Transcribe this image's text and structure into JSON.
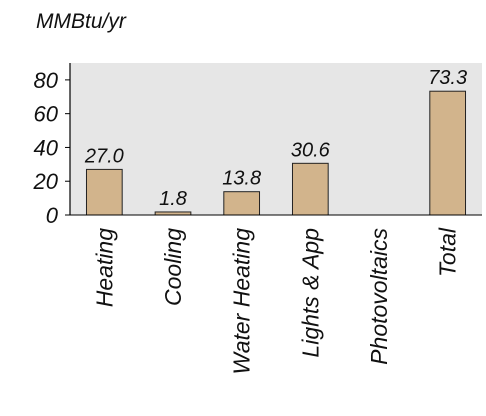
{
  "chart_data": {
    "type": "bar",
    "unit_label": "MMBtu/yr",
    "categories": [
      "Heating",
      "Cooling",
      "Water Heating",
      "Lights & App",
      "Photovoltaics",
      "Total"
    ],
    "values": [
      27.0,
      1.8,
      13.8,
      30.6,
      0,
      73.3
    ],
    "value_labels": [
      "27.0",
      "1.8",
      "13.8",
      "30.6",
      "",
      "73.3"
    ],
    "yticks": [
      0,
      20,
      40,
      60,
      80
    ],
    "ylim": [
      0,
      90
    ],
    "grid": false,
    "legend": "none",
    "colors": {
      "plot_background": "#e6e6e6",
      "bar_fill": "#d2b48c",
      "bar_stroke": "#222222",
      "axis": "#000000"
    }
  }
}
